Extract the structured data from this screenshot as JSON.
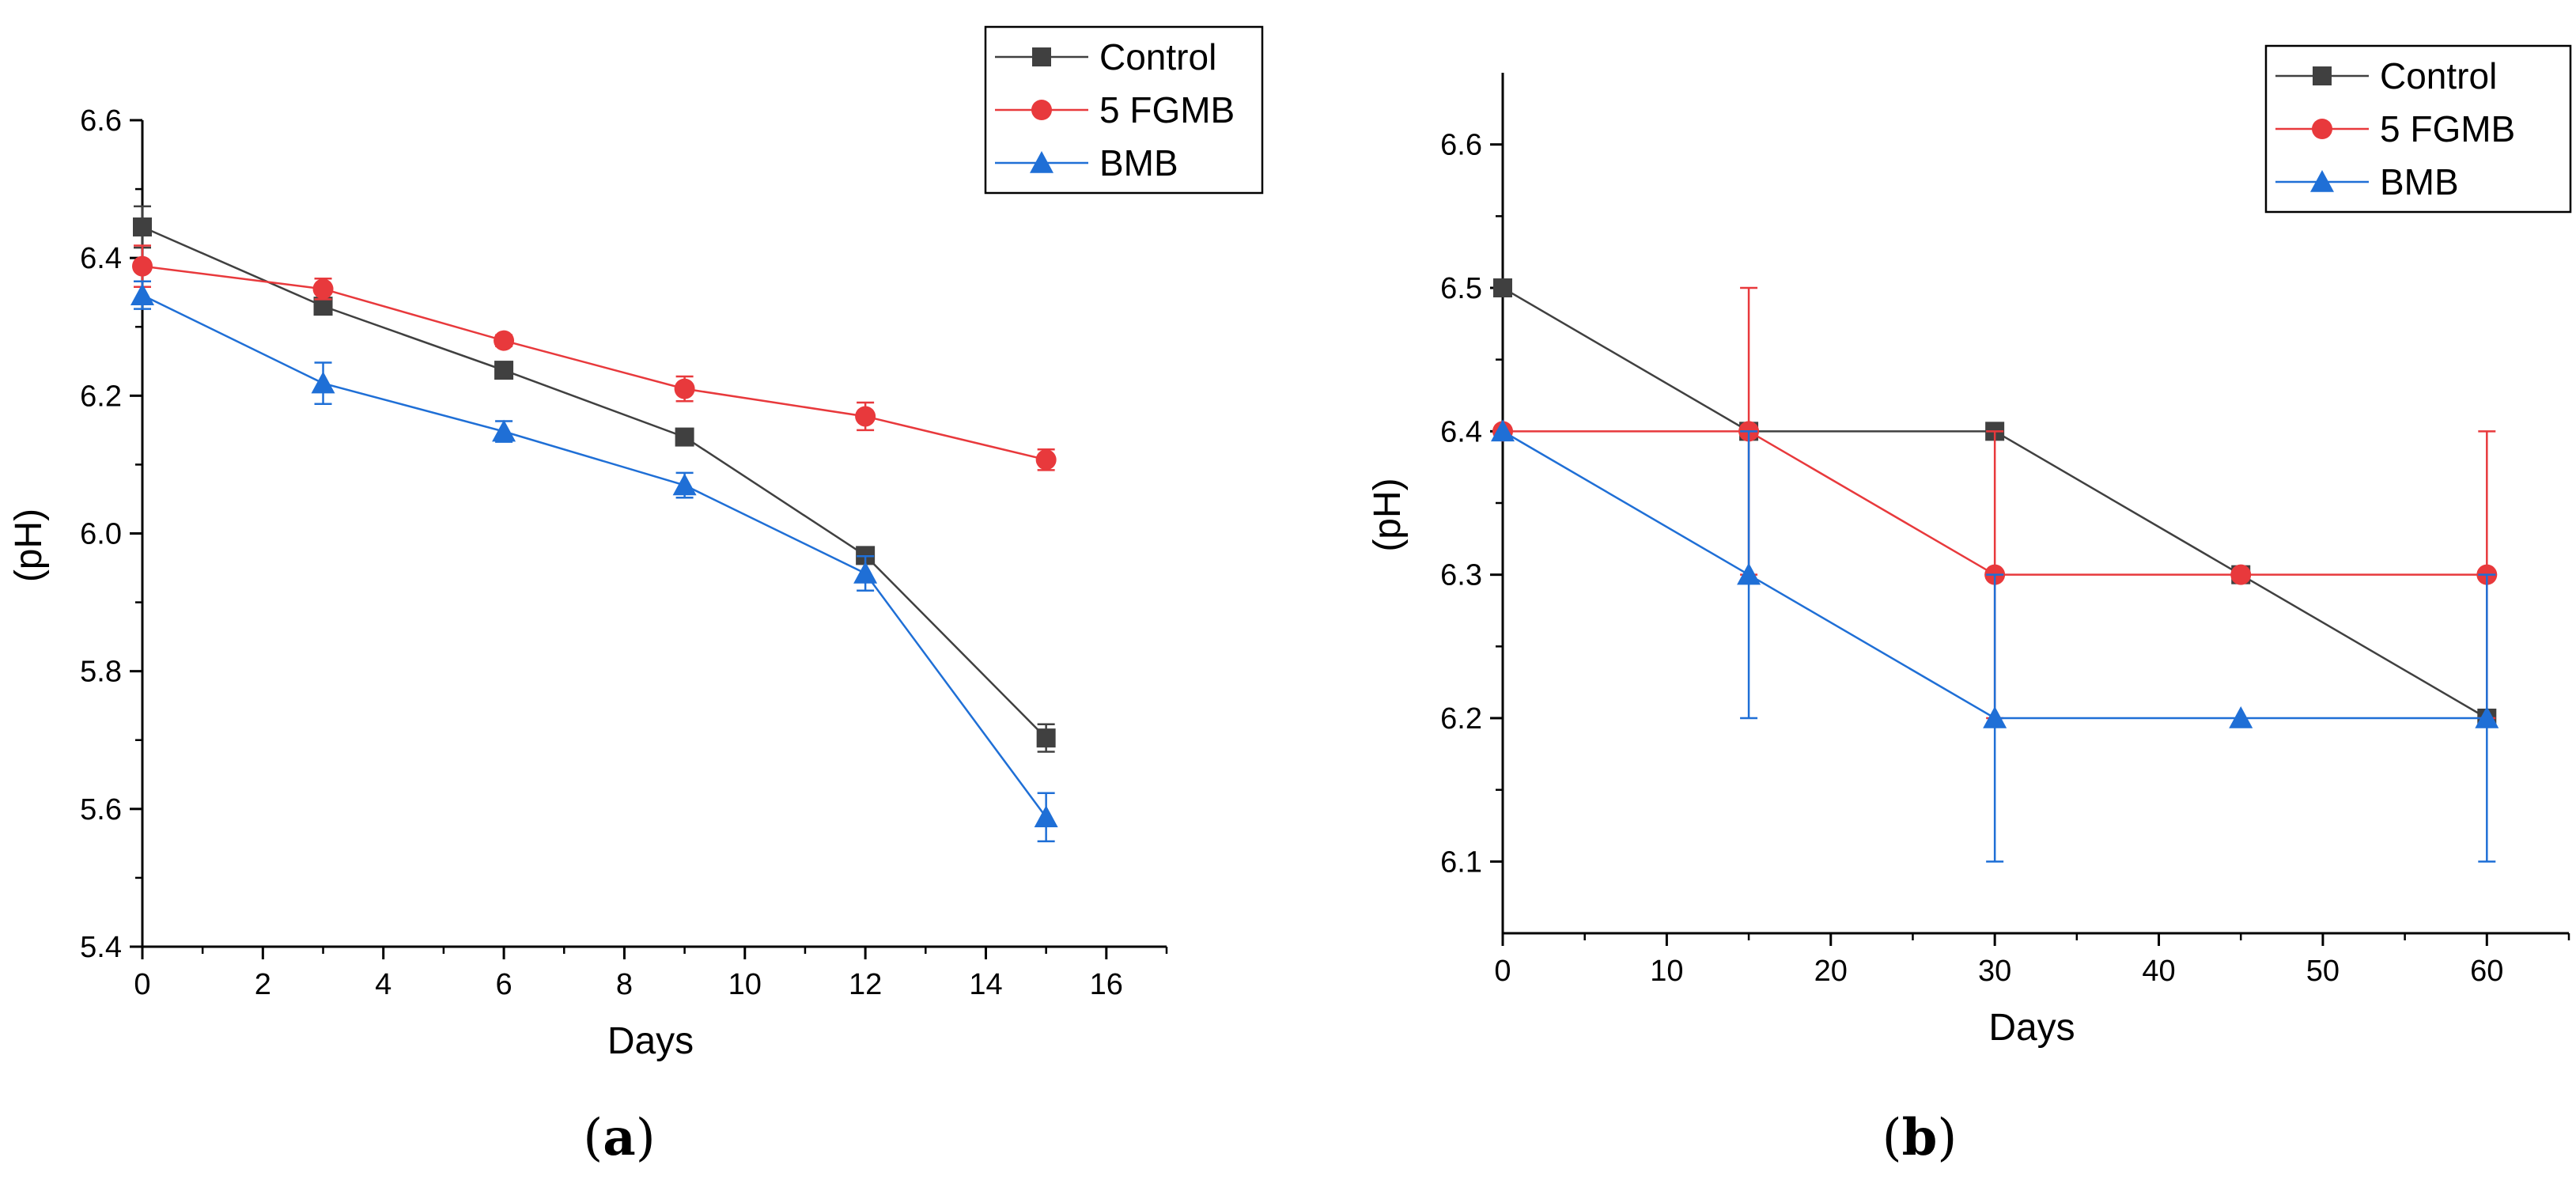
{
  "chart_data": [
    {
      "type": "line",
      "panel_label": "a",
      "xlabel": "Days",
      "ylabel": "(pH)",
      "xlim": [
        0,
        17
      ],
      "ylim": [
        5.4,
        6.6
      ],
      "xticks": [
        0,
        2,
        4,
        6,
        8,
        10,
        12,
        14,
        16
      ],
      "xtick_labels": [
        "0",
        "2",
        "4",
        "6",
        "8",
        "10",
        "12",
        "14",
        "16"
      ],
      "yticks": [
        5.4,
        5.6,
        5.8,
        6.0,
        6.2,
        6.4,
        6.6
      ],
      "ytick_labels": [
        "5.4",
        "5.6",
        "5.8",
        "6.0",
        "6.2",
        "6.4",
        "6.6"
      ],
      "legend": "top-right",
      "x": [
        0,
        3,
        6,
        9,
        12,
        15
      ],
      "series": [
        {
          "name": "Control",
          "marker": "square",
          "color": "#404040",
          "values": [
            6.445,
            6.33,
            6.237,
            6.14,
            5.968,
            5.703
          ],
          "errors": [
            0.03,
            0.01,
            0.012,
            0.008,
            0.01,
            0.02
          ]
        },
        {
          "name": "5 FGMB",
          "marker": "circle",
          "color": "#e8393c",
          "values": [
            6.388,
            6.355,
            6.28,
            6.21,
            6.17,
            6.107
          ],
          "errors": [
            0.03,
            0.015,
            0.008,
            0.018,
            0.02,
            0.015
          ]
        },
        {
          "name": "BMB",
          "marker": "triangle",
          "color": "#1f6fd6",
          "values": [
            6.346,
            6.218,
            6.148,
            6.07,
            5.942,
            5.588
          ],
          "errors": [
            0.02,
            0.03,
            0.015,
            0.018,
            0.025,
            0.035
          ]
        }
      ]
    },
    {
      "type": "line",
      "panel_label": "b",
      "xlabel": "Days",
      "ylabel": "(pH)",
      "xlim": [
        0,
        65
      ],
      "ylim": [
        6.05,
        6.65
      ],
      "xticks": [
        0,
        10,
        20,
        30,
        40,
        50,
        60
      ],
      "xtick_labels": [
        "0",
        "10",
        "20",
        "30",
        "40",
        "50",
        "60"
      ],
      "yticks": [
        6.1,
        6.2,
        6.3,
        6.4,
        6.5,
        6.6
      ],
      "ytick_labels": [
        "6.1",
        "6.2",
        "6.3",
        "6.4",
        "6.5",
        "6.6"
      ],
      "legend": "top-right",
      "x": [
        0,
        15,
        30,
        45,
        60
      ],
      "series": [
        {
          "name": "Control",
          "marker": "square",
          "color": "#404040",
          "values": [
            6.5,
            6.4,
            6.4,
            6.3,
            6.2
          ],
          "errors": [
            0,
            0,
            0,
            0,
            0
          ]
        },
        {
          "name": "5 FGMB",
          "marker": "circle",
          "color": "#e8393c",
          "values": [
            6.4,
            6.4,
            6.3,
            6.3,
            6.3
          ],
          "errors": [
            0,
            0.1,
            0.1,
            0,
            0.1
          ]
        },
        {
          "name": "BMB",
          "marker": "triangle",
          "color": "#1f6fd6",
          "values": [
            6.4,
            6.3,
            6.2,
            6.2,
            6.2
          ],
          "errors": [
            0,
            0.1,
            0.1,
            0,
            0.1
          ]
        }
      ]
    }
  ]
}
